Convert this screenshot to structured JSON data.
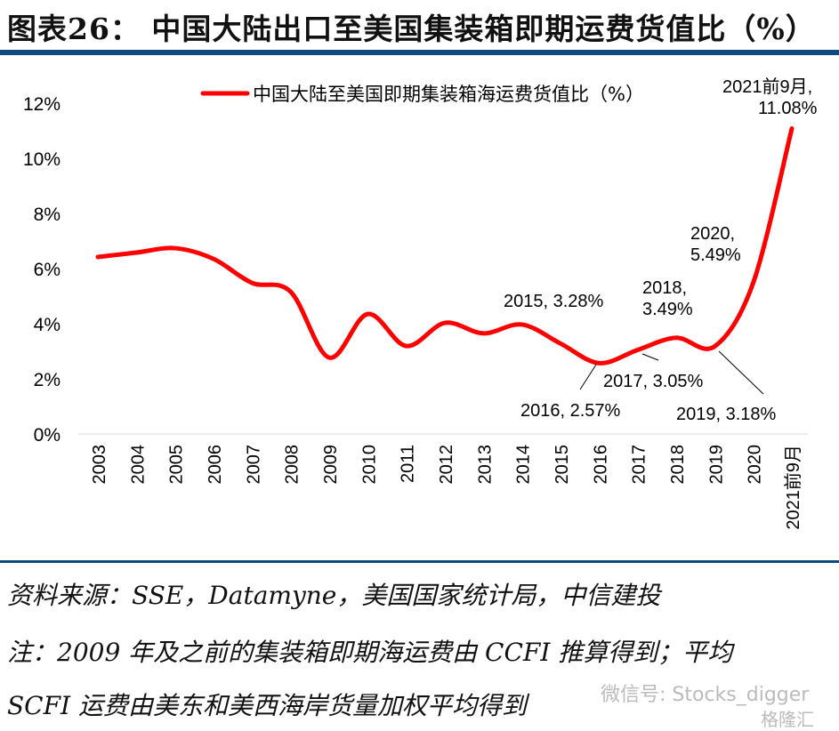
{
  "header": {
    "title": "图表26：  中国大陆出口至美国集装箱即期运费货值比（%）"
  },
  "chart_data": {
    "type": "line",
    "title": "",
    "categories": [
      "2003",
      "2004",
      "2005",
      "2006",
      "2007",
      "2008",
      "2009",
      "2010",
      "2011",
      "2012",
      "2013",
      "2014",
      "2015",
      "2016",
      "2017",
      "2018",
      "2019",
      "2020",
      "2021前9月"
    ],
    "series": [
      {
        "name": "中国大陆至美国即期集装箱海运费货值比（%）",
        "color": "#ff0000",
        "values": [
          6.42,
          6.58,
          6.74,
          6.35,
          5.48,
          5.16,
          2.77,
          4.35,
          3.19,
          4.03,
          3.65,
          3.97,
          3.28,
          2.57,
          3.05,
          3.49,
          3.18,
          5.49,
          11.08
        ]
      }
    ],
    "ylim": [
      0,
      12
    ],
    "yticks": [
      "0%",
      "2%",
      "4%",
      "6%",
      "8%",
      "10%",
      "12%"
    ],
    "grid": false,
    "legend": "top-center",
    "annotations": [
      {
        "category": "2015",
        "text": "2015, 3.28%"
      },
      {
        "category": "2016",
        "text": "2016, 2.57%"
      },
      {
        "category": "2017",
        "text": "2017, 3.05%"
      },
      {
        "category": "2018",
        "text": "2018,",
        "text2": "3.49%"
      },
      {
        "category": "2019",
        "text": "2019, 3.18%"
      },
      {
        "category": "2020",
        "text": "2020,",
        "text2": "5.49%"
      },
      {
        "category": "2021前9月",
        "text": "2021前9月,",
        "text2": "11.08%"
      }
    ]
  },
  "footer": {
    "source": "资料来源：SSE，Datamyne，美国国家统计局，中信建投",
    "note_line1": "注：2009 年及之前的集装箱即期海运费由 CCFI 推算得到；平均",
    "note_line2": "SCFI 运费由美东和美西海岸货量加权平均得到",
    "watermark": "微信号: Stocks_digger",
    "watermark2": "格隆汇"
  }
}
